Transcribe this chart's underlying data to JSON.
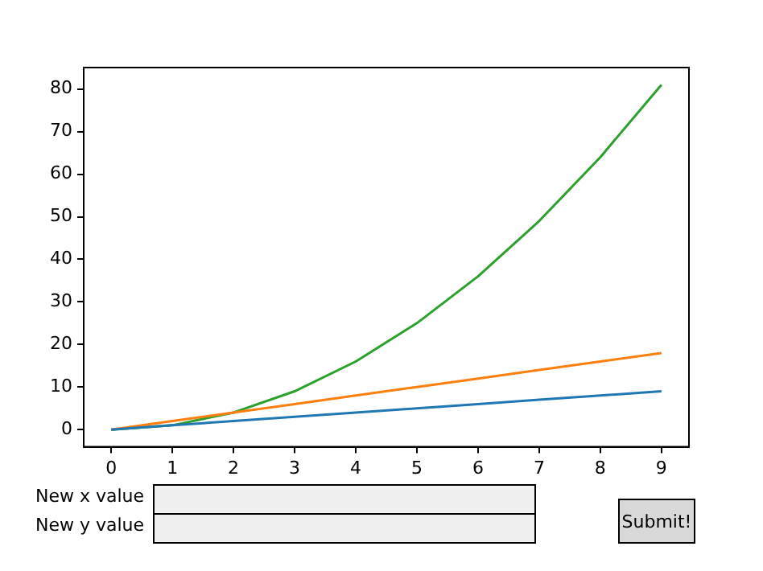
{
  "chart_data": {
    "type": "line",
    "x": [
      0,
      1,
      2,
      3,
      4,
      5,
      6,
      7,
      8,
      9
    ],
    "series": [
      {
        "color": "#1f77b4",
        "values": [
          0,
          1,
          2,
          3,
          4,
          5,
          6,
          7,
          8,
          9
        ]
      },
      {
        "color": "#ff7f0e",
        "values": [
          0,
          2,
          4,
          6,
          8,
          10,
          12,
          14,
          16,
          18
        ]
      },
      {
        "color": "#2ca02c",
        "values": [
          0,
          1,
          4,
          9,
          16,
          25,
          36,
          49,
          64,
          81
        ]
      }
    ],
    "xlim": [
      -0.45,
      9.45
    ],
    "xticks": [
      0,
      1,
      2,
      3,
      4,
      5,
      6,
      7,
      8,
      9
    ],
    "ylim": [
      -4.05,
      85.05
    ],
    "yticks": [
      0,
      10,
      20,
      30,
      40,
      50,
      60,
      70,
      80
    ],
    "grid": false,
    "legend": false,
    "marker": "none",
    "line_style": "solid",
    "annotations": [
      "New x value",
      "New y value",
      "Submit!"
    ]
  }
}
